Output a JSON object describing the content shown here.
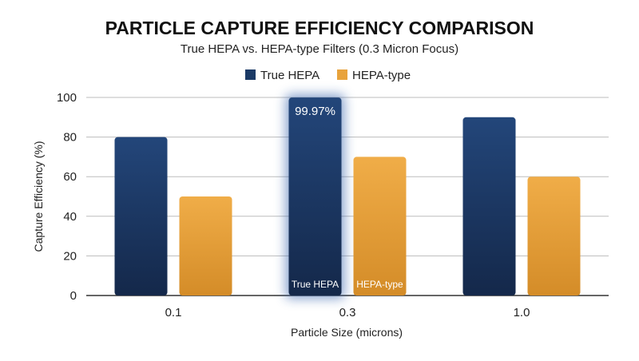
{
  "chart_data": {
    "type": "bar",
    "title": "PARTICLE CAPTURE EFFICIENCY COMPARISON",
    "subtitle": "True HEPA vs. HEPA-type Filters (0.3 Micron Focus)",
    "xlabel": "Particle Size (microns)",
    "ylabel": "Capture Efficiency (%)",
    "categories": [
      "0.1",
      "0.3",
      "1.0"
    ],
    "ylim": [
      0,
      100
    ],
    "yticks": [
      "0",
      "20",
      "40",
      "60",
      "80",
      "100"
    ],
    "grid": true,
    "legend_position": "top-center",
    "series": [
      {
        "name": "True HEPA",
        "color": "#1b3a66",
        "values": [
          80,
          99.97,
          90
        ]
      },
      {
        "name": "HEPA-type",
        "color": "#e8a33c",
        "values": [
          50,
          70,
          60
        ]
      }
    ],
    "highlight": {
      "category": "0.3",
      "value_label": "99.97%",
      "bar_labels": [
        "True HEPA",
        "HEPA-type"
      ]
    }
  }
}
